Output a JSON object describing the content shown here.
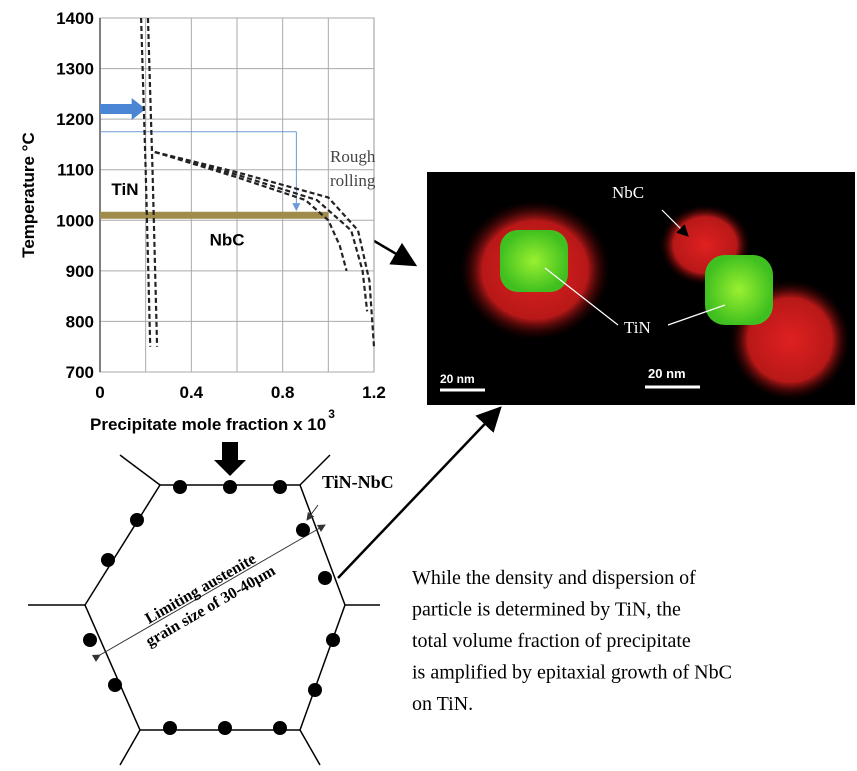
{
  "chart_data": {
    "type": "line",
    "x_label": "Precipitate mole fraction x 10",
    "x_label_exponent": "3",
    "y_label": "Temperature °C",
    "xlim": [
      0,
      1.2
    ],
    "ylim": [
      700,
      1400
    ],
    "xticks": [
      0,
      0.4,
      0.8,
      1.2
    ],
    "xgrid": [
      0.2,
      0.4,
      0.6,
      0.8,
      1.0
    ],
    "yticks": [
      700,
      800,
      900,
      1000,
      1100,
      1200,
      1300,
      1400
    ],
    "grid": true,
    "series": [
      {
        "color": "#222222",
        "x": [
          0.18,
          0.2,
          0.22
        ],
        "values": [
          1400,
          1100,
          750
        ]
      },
      {
        "color": "#222222",
        "x": [
          0.21,
          0.23,
          0.25
        ],
        "values": [
          1400,
          1100,
          750
        ]
      },
      {
        "color": "#222222",
        "x": [
          0.24,
          0.6,
          0.9,
          1.0,
          1.05,
          1.08
        ],
        "values": [
          1135,
          1085,
          1040,
          1000,
          950,
          900
        ]
      },
      {
        "color": "#222222",
        "x": [
          0.24,
          0.6,
          0.95,
          1.1,
          1.15,
          1.17
        ],
        "values": [
          1135,
          1090,
          1040,
          980,
          900,
          820
        ]
      },
      {
        "color": "#222222",
        "x": [
          0.24,
          0.6,
          1.0,
          1.13,
          1.18,
          1.2
        ],
        "values": [
          1135,
          1095,
          1045,
          980,
          880,
          750
        ]
      }
    ],
    "annotations": [
      {
        "text": "TiN",
        "x": 0.05,
        "y": 1050
      },
      {
        "text": "NbC",
        "x": 0.48,
        "y": 950
      }
    ],
    "reheat_arrow": {
      "y": 1220,
      "x_end": 0.2,
      "color": "#4a86d4"
    },
    "finish_line": {
      "y": 1010,
      "x_end": 1.0,
      "color": "#a08c4a"
    },
    "rough_rolling": {
      "label": [
        "Rough",
        "rolling"
      ],
      "x": 0.86,
      "y_start": 1175,
      "y_end": 1020,
      "color": "#6a9ad8"
    }
  },
  "micrograph": {
    "labels": {
      "nbc": "NbC",
      "tin": "TiN"
    },
    "scale_bars": [
      "20 nm",
      "20 nm"
    ]
  },
  "diagram": {
    "particle_label": "TiN-NbC",
    "grain_label": [
      "Limiting austenite",
      "grain size of 30-40µm"
    ]
  },
  "caption": [
    "While the density and dispersion of",
    "particle is determined by TiN, the",
    "total volume fraction of precipitate",
    "is amplified by epitaxial growth of NbC",
    "on TiN."
  ]
}
